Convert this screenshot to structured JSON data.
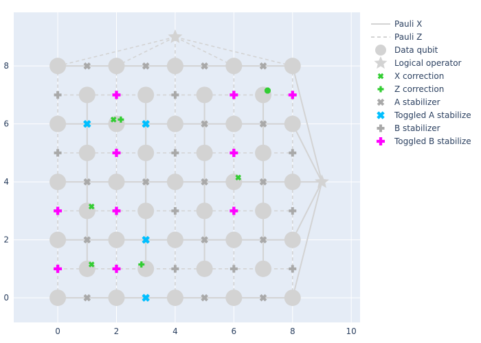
{
  "chart_data": {
    "type": "scatter",
    "title": "",
    "xlabel": "",
    "ylabel": "",
    "xlim": [
      -1.5,
      10.3
    ],
    "ylim": [
      -0.85,
      9.85
    ],
    "x_ticks": [
      0,
      2,
      4,
      6,
      8,
      10
    ],
    "y_ticks": [
      0,
      2,
      4,
      6,
      8
    ],
    "grid": true,
    "legend_position": "right",
    "colors": {
      "plot_bg": "#e5ecf6",
      "grid": "#ffffff",
      "gray_line": "#d3d3d3",
      "gray_marker": "#a9a9a9",
      "data_qubit": "#d3d3d3",
      "x_correction": "#32cd32",
      "z_correction": "#32cd32",
      "toggled_a": "#00bfff",
      "toggled_b": "#ff00ff",
      "tick_text": "#2a3f5f"
    },
    "series": [
      {
        "name": "Pauli X",
        "kind": "line",
        "style": "solid",
        "icon": "solid-line-icon",
        "x": [
          0,
          8
        ],
        "y": [
          8,
          8
        ],
        "rows": [
          0,
          2,
          4,
          6,
          8
        ],
        "cols": [
          1,
          3,
          5,
          7
        ]
      },
      {
        "name": "Pauli Z",
        "kind": "line",
        "style": "dash",
        "icon": "dashed-line-icon",
        "rows": [
          1,
          3,
          5,
          7
        ],
        "cols": [
          0,
          2,
          4,
          6,
          8
        ]
      },
      {
        "name": "Data qubit",
        "kind": "marker",
        "symbol": "circle",
        "icon": "circle-icon",
        "even_rows_x": [
          0,
          2,
          4,
          6,
          8
        ],
        "even_rows_y": [
          0,
          2,
          4,
          6,
          8
        ],
        "odd_rows_x": [
          1,
          3,
          5,
          7
        ],
        "odd_rows_y": [
          1,
          3,
          5,
          7
        ]
      },
      {
        "name": "Logical operator",
        "kind": "marker",
        "symbol": "star",
        "icon": "star-icon",
        "points": [
          [
            4,
            9
          ],
          [
            9,
            4
          ]
        ]
      },
      {
        "name": "X correction",
        "kind": "marker",
        "symbol": "x",
        "icon": "x-mark-icon",
        "points": [
          [
            7.15,
            7.15
          ],
          [
            1.9,
            6.15
          ],
          [
            6.15,
            4.15
          ],
          [
            1.15,
            3.15
          ],
          [
            1.15,
            1.15
          ]
        ]
      },
      {
        "name": "Z correction",
        "kind": "marker",
        "symbol": "cross",
        "icon": "plus-mark-icon",
        "points": [
          [
            7.15,
            7.15
          ],
          [
            2.15,
            6.15
          ],
          [
            2.85,
            1.15
          ]
        ]
      },
      {
        "name": "A stabilizer",
        "kind": "marker",
        "symbol": "x",
        "icon": "x-mark-icon",
        "rows": [
          0,
          2,
          4,
          6,
          8
        ],
        "cols": [
          1,
          3,
          5,
          7
        ]
      },
      {
        "name": "Toggled A stabilizer",
        "kind": "marker",
        "symbol": "x",
        "icon": "x-mark-icon",
        "points": [
          [
            1,
            6
          ],
          [
            3,
            6
          ],
          [
            3,
            2
          ],
          [
            3,
            0
          ]
        ]
      },
      {
        "name": "B stabilizer",
        "kind": "marker",
        "symbol": "cross",
        "icon": "plus-mark-icon",
        "rows": [
          1,
          3,
          5,
          7
        ],
        "cols": [
          0,
          2,
          4,
          6,
          8
        ]
      },
      {
        "name": "Toggled B stabilizer",
        "kind": "marker",
        "symbol": "cross",
        "icon": "plus-mark-icon",
        "points": [
          [
            2,
            7
          ],
          [
            6,
            7
          ],
          [
            8,
            7
          ],
          [
            2,
            5
          ],
          [
            6,
            5
          ],
          [
            0,
            3
          ],
          [
            2,
            3
          ],
          [
            6,
            3
          ],
          [
            0,
            1
          ],
          [
            2,
            1
          ]
        ]
      }
    ],
    "legend_labels": [
      "Pauli X",
      "Pauli Z",
      "Data qubit",
      "Logical operator",
      "X correction",
      "Z correction",
      "A stabilizer",
      "Toggled A stabilize",
      "B stabilizer",
      "Toggled B stabilize"
    ]
  }
}
